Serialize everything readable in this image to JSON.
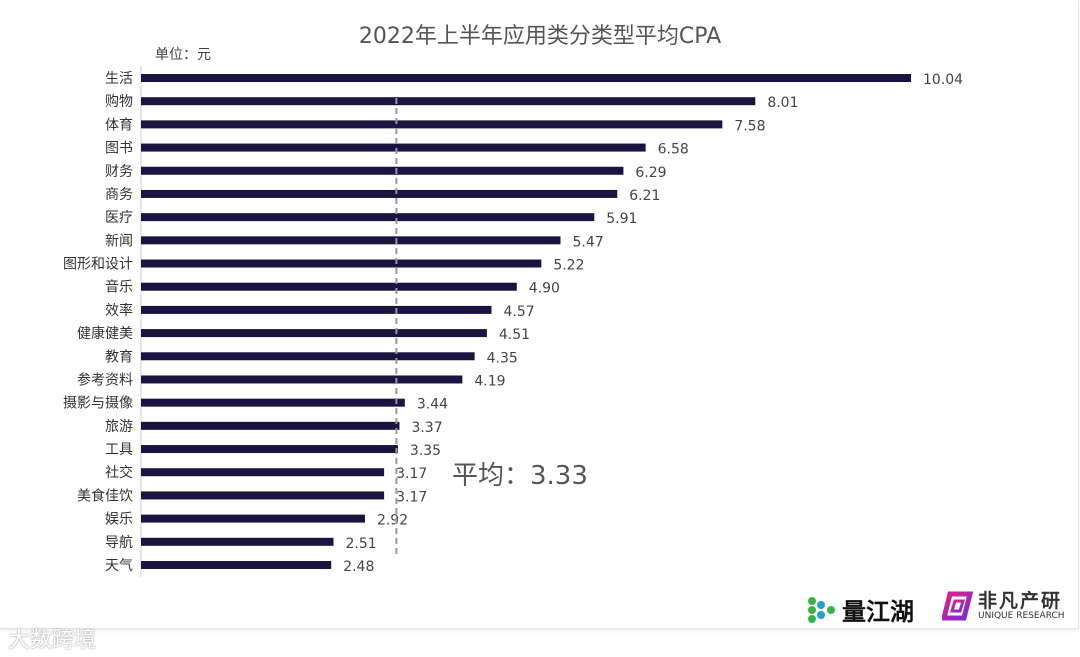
{
  "chart_data": {
    "type": "bar",
    "orientation": "horizontal",
    "title": "2022年上半年应用类分类型平均CPA",
    "unit_label": "单位：元",
    "categories": [
      "生活",
      "购物",
      "体育",
      "图书",
      "财务",
      "商务",
      "医疗",
      "新闻",
      "图形和设计",
      "音乐",
      "效率",
      "健康健美",
      "教育",
      "参考资料",
      "摄影与摄像",
      "旅游",
      "工具",
      "社交",
      "美食佳饮",
      "娱乐",
      "导航",
      "天气"
    ],
    "values": [
      10.04,
      8.01,
      7.58,
      6.58,
      6.29,
      6.21,
      5.91,
      5.47,
      5.22,
      4.9,
      4.57,
      4.51,
      4.35,
      4.19,
      3.44,
      3.37,
      3.35,
      3.17,
      3.17,
      2.92,
      2.51,
      2.48
    ],
    "value_labels": [
      "10.04",
      "8.01",
      "7.58",
      "6.58",
      "6.29",
      "6.21",
      "5.91",
      "5.47",
      "5.22",
      "4.90",
      "4.57",
      "4.51",
      "4.35",
      "4.19",
      "3.44",
      "3.37",
      "3.35",
      "3.17",
      "3.17",
      "2.92",
      "2.51",
      "2.48"
    ],
    "average": 3.33,
    "average_label": "平均：3.33",
    "xlim": [
      0,
      10.04
    ],
    "grid": false,
    "bar_color": "#1b1440",
    "average_line_color": "#999999"
  },
  "logos": {
    "brand1": "量江湖",
    "brand2_cn": "非凡产研",
    "brand2_en": "UNIQUE RESEARCH",
    "watermark": "大数跨境"
  }
}
